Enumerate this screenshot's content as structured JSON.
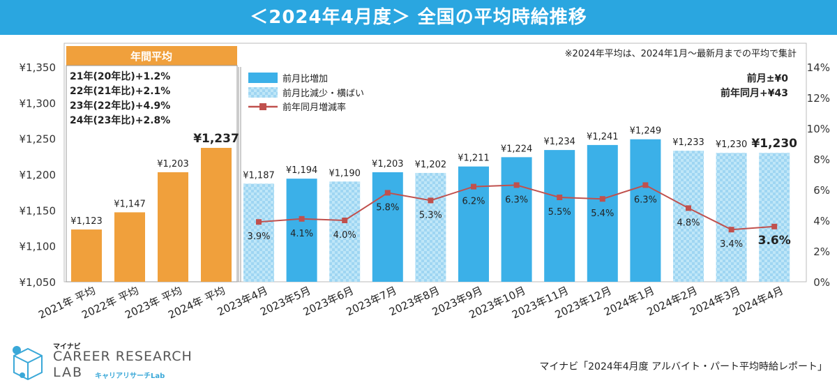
{
  "header": {
    "title": "＜2024年4月度＞ 全国の平均時給推移"
  },
  "note": "※2024年平均は、2024年1月～最新月までの平均で集計",
  "annual_panel": {
    "title": "年間平均",
    "lines": [
      "21年(20年比)+1.2%",
      "22年(21年比)+2.1%",
      "23年(22年比)+4.9%",
      "24年(23年比)+2.8%"
    ]
  },
  "legend": {
    "increase": "前月比増加",
    "decrease": "前月比減少・横ばい",
    "yoy": "前年同月増減率"
  },
  "summary": {
    "mom": "前月±¥0",
    "yoy": "前年同月+¥43"
  },
  "colors": {
    "annual": "#f0a03c",
    "increase": "#3bb0e8",
    "decrease": "#a8dcf5",
    "line": "#c0504d",
    "header": "#2aa6e0"
  },
  "chart_data": {
    "type": "bar",
    "categories": [
      "2021年 平均",
      "2022年 平均",
      "2023年 平均",
      "2024年 平均",
      "2023年4月",
      "2023年5月",
      "2023年6月",
      "2023年7月",
      "2023年8月",
      "2023年9月",
      "2023年10月",
      "2023年11月",
      "2023年12月",
      "2024年1月",
      "2024年2月",
      "2024年3月",
      "2024年4月"
    ],
    "values": [
      1123,
      1147,
      1203,
      1237,
      1187,
      1194,
      1190,
      1203,
      1202,
      1211,
      1224,
      1234,
      1241,
      1249,
      1233,
      1230,
      1230
    ],
    "value_labels": [
      "¥1,123",
      "¥1,147",
      "¥1,203",
      "¥1,237",
      "¥1,187",
      "¥1,194",
      "¥1,190",
      "¥1,203",
      "¥1,202",
      "¥1,211",
      "¥1,224",
      "¥1,234",
      "¥1,241",
      "¥1,249",
      "¥1,233",
      "¥1,230",
      "¥1,230"
    ],
    "bar_kind": [
      "annual",
      "annual",
      "annual",
      "annual",
      "decrease",
      "increase",
      "decrease",
      "increase",
      "decrease",
      "increase",
      "increase",
      "increase",
      "increase",
      "increase",
      "decrease",
      "decrease",
      "decrease"
    ],
    "line_series": {
      "name": "前年同月増減率",
      "start_index": 4,
      "values": [
        3.9,
        4.1,
        4.0,
        5.8,
        5.3,
        6.2,
        6.3,
        5.5,
        5.4,
        6.3,
        4.8,
        3.4,
        3.6
      ],
      "labels": [
        "3.9%",
        "4.1%",
        "4.0%",
        "5.8%",
        "5.3%",
        "6.2%",
        "6.3%",
        "5.5%",
        "5.4%",
        "6.3%",
        "4.8%",
        "3.4%",
        "3.6%"
      ]
    },
    "ylim": [
      1050,
      1350
    ],
    "yticks": [
      "¥1,050",
      "¥1,100",
      "¥1,150",
      "¥1,200",
      "¥1,250",
      "¥1,300",
      "¥1,350"
    ],
    "y2lim": [
      0,
      14
    ],
    "y2ticks": [
      "0%",
      "2%",
      "4%",
      "6%",
      "8%",
      "10%",
      "12%",
      "14%"
    ],
    "legend_position": "top-left"
  },
  "footer": {
    "brand_small": "マイナビ",
    "brand_line1": "CAREER RESEARCH",
    "brand_line2": "LAB",
    "brand_kana": "キャリアリサーチLab",
    "source": "マイナビ「2024年4月度 アルバイト・パート平均時給レポート」"
  }
}
